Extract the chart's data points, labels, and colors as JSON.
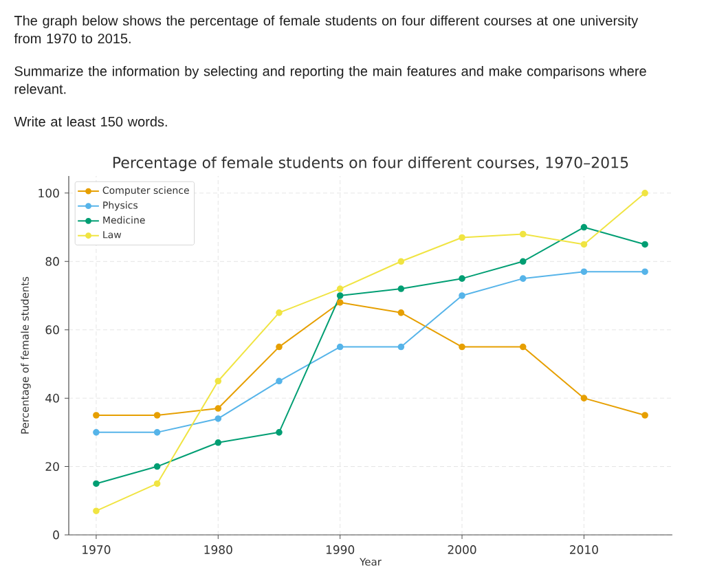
{
  "chart_data": {
    "type": "line",
    "title": "Percentage of female students on four different courses, 1970–2015",
    "xlabel": "Year",
    "ylabel": "Percentage of female students",
    "annotations": [
      "The graph below shows the percentage of female students on four different courses at one university from 1970 to 2015.",
      "Summarize the information by selecting and reporting the main features and make comparisons where relevant.",
      "Write at least 150 words."
    ],
    "x": [
      1970,
      1975,
      1980,
      1985,
      1990,
      1995,
      2000,
      2005,
      2010,
      2015
    ],
    "series": [
      {
        "name": "Computer science",
        "color": "#e69f00",
        "values": [
          35,
          35,
          37,
          55,
          68,
          65,
          55,
          55,
          40,
          35
        ]
      },
      {
        "name": "Physics",
        "color": "#56b4e9",
        "values": [
          30,
          30,
          34,
          45,
          55,
          55,
          70,
          75,
          77,
          77
        ]
      },
      {
        "name": "Medicine",
        "color": "#009e73",
        "values": [
          15,
          20,
          27,
          30,
          70,
          72,
          75,
          80,
          90,
          85
        ]
      },
      {
        "name": "Law",
        "color": "#f0e442",
        "values": [
          7,
          15,
          45,
          65,
          72,
          80,
          87,
          88,
          85,
          100
        ]
      }
    ],
    "xlim": [
      1967.75,
      2017.25
    ],
    "ylim": [
      0,
      105
    ],
    "xticks": [
      1970,
      1980,
      1990,
      2000,
      2010
    ],
    "yticks": [
      0,
      20,
      40,
      60,
      80,
      100
    ],
    "grid": true,
    "legend": "top left",
    "marker": "circle"
  }
}
